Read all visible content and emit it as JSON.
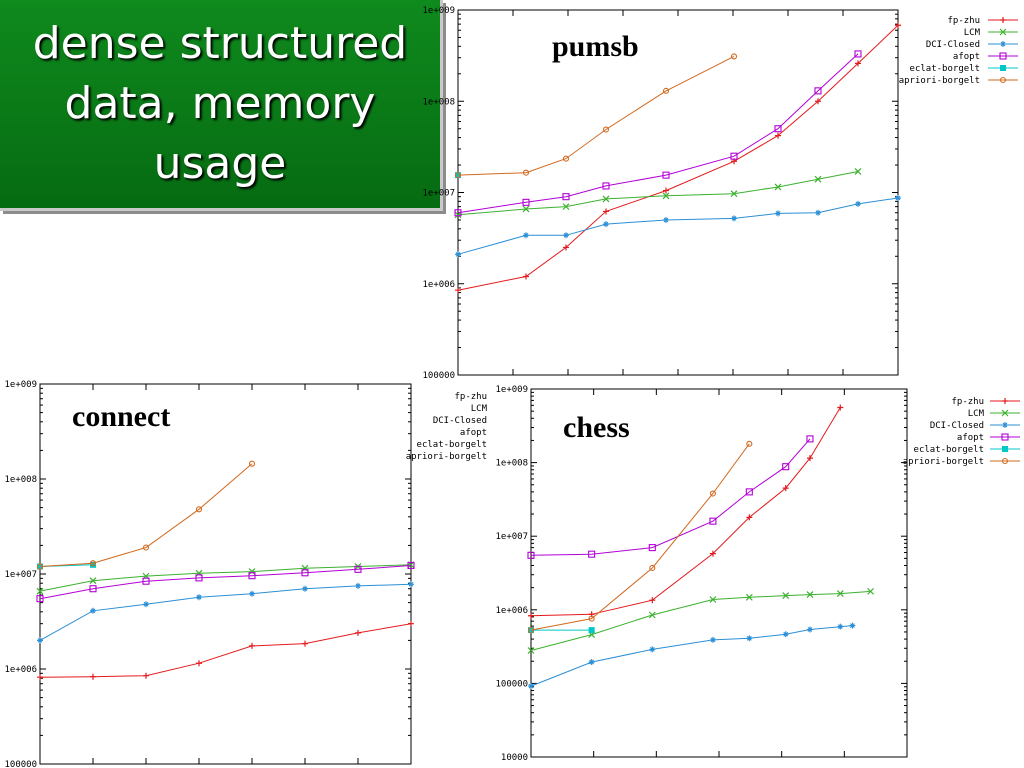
{
  "slide": {
    "title": "dense structured\ndata, memory\nusage"
  },
  "colors": {
    "title_bg": "#0a7a16",
    "fp-zhu": "#e41a1c",
    "LCM": "#3cb12f",
    "DCI-Closed": "#2a8fd6",
    "afopt": "#b300d6",
    "eclat-borgelt": "#00c8c8",
    "apriori-borgelt": "#d2691e"
  },
  "chart_data": [
    {
      "type": "line",
      "title": "pumsb",
      "yscale": "log",
      "ylim": [
        100000,
        1000000000
      ],
      "yticks": [
        {
          "v": 1000000000,
          "label": "1e+009"
        },
        {
          "v": 100000000,
          "label": "1e+008"
        },
        {
          "v": 10000000,
          "label": "1e+007"
        },
        {
          "v": 1000000,
          "label": "1e+006"
        },
        {
          "v": 100000,
          "label": "100000"
        }
      ],
      "legend": "top-right",
      "series": [
        {
          "name": "fp-zhu",
          "marker": "plus",
          "points": [
            [
              0,
              850000
            ],
            [
              1.7,
              1200000
            ],
            [
              2.7,
              2500000
            ],
            [
              3.7,
              6200000
            ],
            [
              5.2,
              10500000
            ],
            [
              6.9,
              22000000
            ],
            [
              8,
              42000000
            ],
            [
              9,
              100000000
            ],
            [
              10,
              260000000
            ],
            [
              11,
              680000000
            ]
          ]
        },
        {
          "name": "LCM",
          "marker": "x",
          "points": [
            [
              0,
              5700000
            ],
            [
              1.7,
              6600000
            ],
            [
              2.7,
              7000000
            ],
            [
              3.7,
              8500000
            ],
            [
              5.2,
              9200000
            ],
            [
              6.9,
              9700000
            ],
            [
              8,
              11500000
            ],
            [
              9,
              14000000
            ],
            [
              10,
              17000000
            ]
          ]
        },
        {
          "name": "DCI-Closed",
          "marker": "star",
          "points": [
            [
              0,
              2100000
            ],
            [
              1.7,
              3400000
            ],
            [
              2.7,
              3400000
            ],
            [
              3.7,
              4500000
            ],
            [
              5.2,
              5000000
            ],
            [
              6.9,
              5200000
            ],
            [
              8,
              5900000
            ],
            [
              9,
              6000000
            ],
            [
              10,
              7500000
            ],
            [
              11,
              8700000
            ]
          ]
        },
        {
          "name": "afopt",
          "marker": "square",
          "points": [
            [
              0,
              6000000
            ],
            [
              1.7,
              7800000
            ],
            [
              2.7,
              9000000
            ],
            [
              3.7,
              11800000
            ],
            [
              5.2,
              15500000
            ],
            [
              6.9,
              25000000
            ],
            [
              8,
              50000000
            ],
            [
              9,
              130000000
            ],
            [
              10,
              330000000
            ]
          ]
        },
        {
          "name": "eclat-borgelt",
          "marker": "filled-square",
          "points": [
            [
              0,
              15500000
            ]
          ]
        },
        {
          "name": "apriori-borgelt",
          "marker": "circle",
          "points": [
            [
              0,
              15500000
            ],
            [
              1.7,
              16500000
            ],
            [
              2.7,
              23500000
            ],
            [
              3.7,
              49000000
            ],
            [
              5.2,
              130000000
            ],
            [
              6.9,
              310000000
            ]
          ]
        }
      ]
    },
    {
      "type": "line",
      "title": "connect",
      "yscale": "log",
      "ylim": [
        100000,
        1000000000
      ],
      "yticks": [
        {
          "v": 1000000000,
          "label": "1e+009"
        },
        {
          "v": 100000000,
          "label": "1e+008"
        },
        {
          "v": 10000000,
          "label": "1e+007"
        },
        {
          "v": 1000000,
          "label": "1e+006"
        },
        {
          "v": 100000,
          "label": "100000"
        }
      ],
      "legend": "top-right",
      "series": [
        {
          "name": "fp-zhu",
          "marker": "plus",
          "points": [
            [
              0,
              820000
            ],
            [
              1,
              830000
            ],
            [
              2,
              850000
            ],
            [
              3,
              1150000
            ],
            [
              4,
              1750000
            ],
            [
              5,
              1850000
            ],
            [
              6,
              2400000
            ],
            [
              7,
              3000000
            ]
          ]
        },
        {
          "name": "LCM",
          "marker": "x",
          "points": [
            [
              0,
              6600000
            ],
            [
              1,
              8500000
            ],
            [
              2,
              9500000
            ],
            [
              3,
              10200000
            ],
            [
              4,
              10600000
            ],
            [
              5,
              11500000
            ],
            [
              6,
              12000000
            ],
            [
              7,
              12500000
            ]
          ]
        },
        {
          "name": "DCI-Closed",
          "marker": "star",
          "points": [
            [
              0,
              2000000
            ],
            [
              1,
              4100000
            ],
            [
              2,
              4800000
            ],
            [
              3,
              5700000
            ],
            [
              4,
              6200000
            ],
            [
              5,
              7000000
            ],
            [
              6,
              7500000
            ],
            [
              7,
              7800000
            ]
          ]
        },
        {
          "name": "afopt",
          "marker": "square",
          "points": [
            [
              0,
              5500000
            ],
            [
              1,
              7000000
            ],
            [
              2,
              8400000
            ],
            [
              3,
              9100000
            ],
            [
              4,
              9600000
            ],
            [
              5,
              10300000
            ],
            [
              6,
              11200000
            ],
            [
              7,
              12300000
            ]
          ]
        },
        {
          "name": "eclat-borgelt",
          "marker": "filled-square",
          "points": [
            [
              0,
              12000000
            ],
            [
              1,
              12500000
            ]
          ]
        },
        {
          "name": "apriori-borgelt",
          "marker": "circle",
          "points": [
            [
              0,
              12000000
            ],
            [
              1,
              13000000
            ],
            [
              2,
              19000000
            ],
            [
              3,
              48000000
            ],
            [
              4,
              145000000
            ]
          ]
        }
      ]
    },
    {
      "type": "line",
      "title": "chess",
      "yscale": "log",
      "ylim": [
        10000,
        1000000000
      ],
      "yticks": [
        {
          "v": 1000000000,
          "label": "1e+009"
        },
        {
          "v": 100000000,
          "label": "1e+008"
        },
        {
          "v": 10000000,
          "label": "1e+007"
        },
        {
          "v": 1000000,
          "label": "1e+006"
        },
        {
          "v": 100000,
          "label": "100000"
        },
        {
          "v": 10000,
          "label": "10000"
        }
      ],
      "legend": "top-right",
      "series": [
        {
          "name": "fp-zhu",
          "marker": "plus",
          "points": [
            [
              0,
              830000
            ],
            [
              1,
              870000
            ],
            [
              2,
              1350000
            ],
            [
              3,
              5800000
            ],
            [
              3.6,
              18000000
            ],
            [
              4.2,
              45000000
            ],
            [
              4.6,
              115000000
            ],
            [
              5.1,
              560000000
            ]
          ]
        },
        {
          "name": "LCM",
          "marker": "x",
          "points": [
            [
              0,
              280000
            ],
            [
              1,
              460000
            ],
            [
              2,
              850000
            ],
            [
              3,
              1380000
            ],
            [
              3.6,
              1480000
            ],
            [
              4.2,
              1560000
            ],
            [
              4.6,
              1610000
            ],
            [
              5.1,
              1660000
            ],
            [
              5.6,
              1780000
            ]
          ]
        },
        {
          "name": "DCI-Closed",
          "marker": "star",
          "points": [
            [
              0,
              92000
            ],
            [
              1,
              195000
            ],
            [
              2,
              290000
            ],
            [
              3,
              390000
            ],
            [
              3.6,
              410000
            ],
            [
              4.2,
              465000
            ],
            [
              4.6,
              540000
            ],
            [
              5.1,
              590000
            ],
            [
              5.3,
              610000
            ]
          ]
        },
        {
          "name": "afopt",
          "marker": "square",
          "points": [
            [
              0,
              5500000
            ],
            [
              1,
              5700000
            ],
            [
              2,
              7000000
            ],
            [
              3,
              16000000
            ],
            [
              3.6,
              40000000
            ],
            [
              4.2,
              88000000
            ],
            [
              4.6,
              210000000
            ]
          ]
        },
        {
          "name": "eclat-borgelt",
          "marker": "filled-square",
          "points": [
            [
              0,
              530000
            ],
            [
              1,
              530000
            ]
          ]
        },
        {
          "name": "apriori-borgelt",
          "marker": "circle",
          "points": [
            [
              0,
              530000
            ],
            [
              1,
              760000
            ],
            [
              2,
              3700000
            ],
            [
              3,
              38000000
            ],
            [
              3.6,
              180000000
            ]
          ]
        }
      ]
    }
  ]
}
